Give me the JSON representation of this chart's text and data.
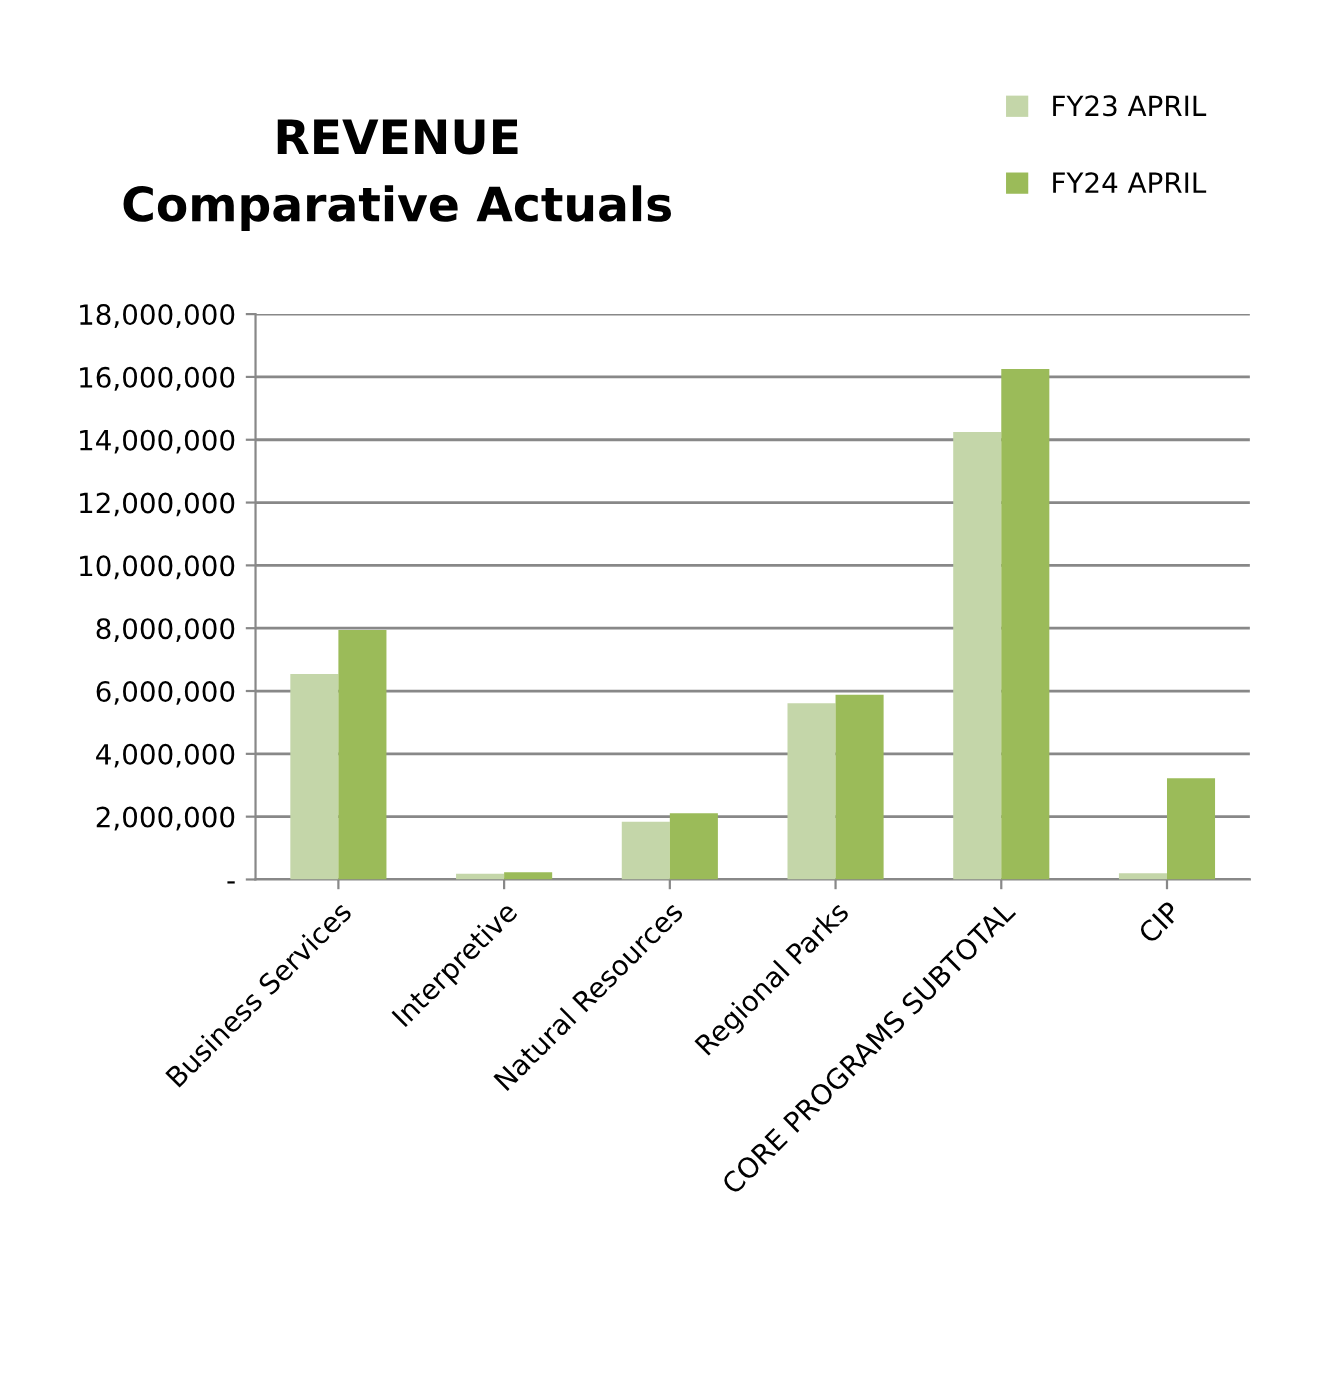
{
  "chart_data": {
    "type": "bar",
    "title": "REVENUE\nComparative Actuals",
    "categories": [
      "Business Services",
      "Interpretive",
      "Natural Resources",
      "Regional Parks",
      "CORE PROGRAMS SUBTOTAL",
      "CIP"
    ],
    "series": [
      {
        "name": "FY23 APRIL",
        "color": "#c4d6a9",
        "values": [
          6540000,
          180000,
          1840000,
          5610000,
          14250000,
          200000
        ]
      },
      {
        "name": "FY24 APRIL",
        "color": "#9bbb59",
        "values": [
          7940000,
          230000,
          2110000,
          5880000,
          16250000,
          3220000
        ]
      }
    ],
    "ylim": [
      0,
      18000000
    ],
    "yticks": [
      {
        "value": 0,
        "label": "-"
      },
      {
        "value": 2000000,
        "label": "2,000,000"
      },
      {
        "value": 4000000,
        "label": "4,000,000"
      },
      {
        "value": 6000000,
        "label": "6,000,000"
      },
      {
        "value": 8000000,
        "label": "8,000,000"
      },
      {
        "value": 10000000,
        "label": "10,000,000"
      },
      {
        "value": 12000000,
        "label": "12,000,000"
      },
      {
        "value": 14000000,
        "label": "14,000,000"
      },
      {
        "value": 16000000,
        "label": "16,000,000"
      },
      {
        "value": 18000000,
        "label": "18,000,000"
      }
    ],
    "grid": "y",
    "legend": "top right"
  }
}
